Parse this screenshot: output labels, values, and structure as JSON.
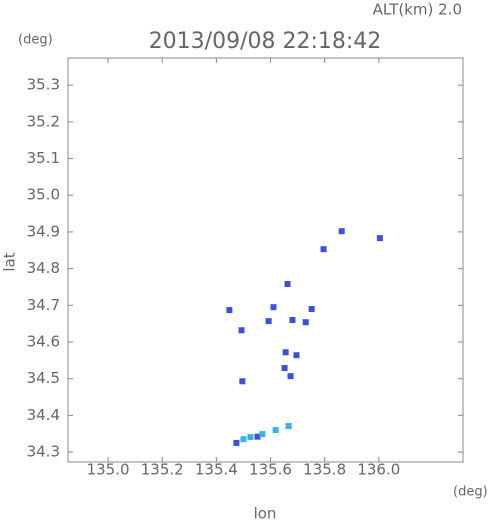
{
  "chart_data": {
    "type": "scatter",
    "title": "2013/09/08 22:18:42",
    "subtitle": "ALT(km) 2.0",
    "y_unit": "(deg)",
    "x_unit": "(deg)",
    "x_label": "lon",
    "y_label": "lat",
    "xlim": [
      134.852,
      136.311
    ],
    "ylim": [
      34.273,
      35.374
    ],
    "xticks": [
      {
        "value": 135,
        "label": "135.0"
      },
      135.2,
      135.4,
      135.6,
      135.8,
      {
        "value": 136,
        "label": "136.0"
      }
    ],
    "yticks": [
      34.3,
      34.4,
      34.5,
      34.6,
      34.7,
      34.8,
      34.9,
      {
        "value": 35,
        "label": "35.0"
      },
      35.1,
      35.2,
      35.3
    ],
    "series": [
      {
        "color": "#3c4fe0",
        "x": [
          135.448,
          135.493,
          135.496,
          135.663,
          135.611,
          135.593,
          135.681,
          135.73,
          135.752,
          135.656,
          135.696,
          135.652,
          135.674,
          135.863,
          135.796,
          136.004,
          135.474,
          135.552
        ],
        "values": [
          34.687,
          34.632,
          34.493,
          34.758,
          34.695,
          34.657,
          34.66,
          34.654,
          34.69,
          34.572,
          34.564,
          34.529,
          34.507,
          34.902,
          34.853,
          34.883,
          34.325,
          34.342
        ]
      },
      {
        "color": "#36b4e6",
        "x": [
          135.526,
          135.57,
          135.619,
          135.667,
          135.5
        ],
        "values": [
          34.341,
          34.349,
          34.36,
          34.371,
          34.335
        ]
      }
    ]
  }
}
